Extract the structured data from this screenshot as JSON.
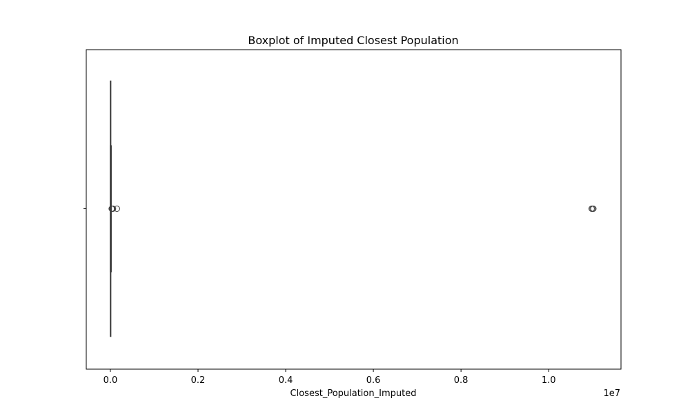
{
  "chart_data": {
    "type": "boxplot",
    "orientation": "horizontal",
    "title": "Boxplot of Imputed Closest Population",
    "xlabel": "Closest_Population_Imputed",
    "ylabel": "",
    "x_offset_label": "1e7",
    "xlim": [
      -550000,
      11650000
    ],
    "xticks": [
      0,
      2000000,
      4000000,
      6000000,
      8000000,
      10000000
    ],
    "xtick_labels": [
      "0.0",
      "0.2",
      "0.4",
      "0.6",
      "0.8",
      "1.0"
    ],
    "box": {
      "whisker_low": 0,
      "q1": 1000,
      "median": 3000,
      "q3": 10000,
      "whisker_high": 20000
    },
    "outliers": [
      30000,
      45000,
      60000,
      150000,
      10980000,
      11000000,
      11020000
    ],
    "grid": false,
    "colors": {
      "box_edge": "#3f3f3f",
      "outlier_edge": "#3f3f3f",
      "axes": "#000000"
    }
  }
}
